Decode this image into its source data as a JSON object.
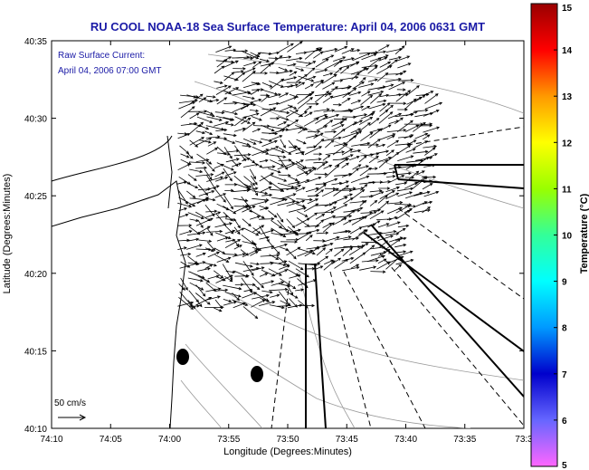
{
  "chart_data": {
    "type": "vector-field-map",
    "title": "RU COOL  NOAA-18  Sea Surface Temperature:  April 04, 2006 0631 GMT",
    "annotation": [
      "Raw Surface Current:",
      "April 04, 2006 07:00 GMT"
    ],
    "xlabel": "Longitude (Degrees:Minutes)",
    "ylabel": "Latitude (Degrees:Minutes)",
    "x_ticks": [
      "74:10",
      "74:05",
      "74:00",
      "73:55",
      "73:50",
      "73:45",
      "73:40",
      "73:35",
      "73:3"
    ],
    "y_ticks": [
      "40:10",
      "40:15",
      "40:20",
      "40:25",
      "40:30",
      "40:35"
    ],
    "xlim": [
      "74:10",
      "73:30"
    ],
    "ylim": [
      "40:10",
      "40:35"
    ],
    "scale_label": "50 cm/s",
    "colorbar": {
      "label": "Temperature (°C)",
      "ticks": [
        "5",
        "6",
        "7",
        "8",
        "9",
        "10",
        "11",
        "12",
        "13",
        "14",
        "15"
      ],
      "range": [
        5,
        15
      ],
      "colors": [
        "#ff66ff",
        "#6666ff",
        "#0000cc",
        "#0099ff",
        "#00ffff",
        "#33ff99",
        "#99ff00",
        "#ffff00",
        "#ff9900",
        "#ff0000",
        "#990000"
      ]
    },
    "grid": false
  }
}
